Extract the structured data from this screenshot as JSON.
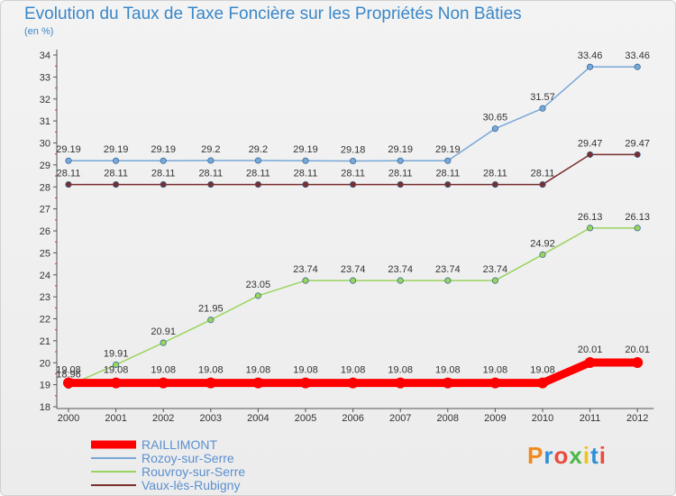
{
  "title": "Evolution du Taux de Taxe Foncière sur les Propriétés Non Bâties",
  "unit_label": "(en %)",
  "logo": "Proxiti",
  "chart_data": {
    "type": "line",
    "x": [
      "2000",
      "2001",
      "2002",
      "2003",
      "2004",
      "2005",
      "2006",
      "2007",
      "2008",
      "2009",
      "2010",
      "2011",
      "2012"
    ],
    "ylim": [
      18,
      34
    ],
    "yticks": [
      18,
      19,
      20,
      21,
      22,
      23,
      24,
      25,
      26,
      27,
      28,
      29,
      30,
      31,
      32,
      33,
      34
    ],
    "grid": false,
    "legend_position": "bottom-left",
    "series": [
      {
        "name": "RAILLIMONT",
        "color": "#ff0000",
        "values": [
          19.08,
          19.08,
          19.08,
          19.08,
          19.08,
          19.08,
          19.08,
          19.08,
          19.08,
          19.08,
          19.08,
          20.01,
          20.01
        ],
        "labels": [
          "19.08",
          "19.08",
          "19.08",
          "19.08",
          "19.08",
          "19.08",
          "19.08",
          "19.08",
          "19.08",
          "19.08",
          "19.08",
          "20.01",
          "20.01"
        ]
      },
      {
        "name": "Rozoy-sur-Serre",
        "color": "#78a8d8",
        "values": [
          29.19,
          29.19,
          29.19,
          29.2,
          29.2,
          29.19,
          29.18,
          29.19,
          29.19,
          30.65,
          31.57,
          33.46,
          33.46
        ],
        "labels": [
          "29.19",
          "29.19",
          "29.19",
          "29.2",
          "29.2",
          "29.19",
          "29.18",
          "29.19",
          "29.19",
          "30.65",
          "31.57",
          "33.46",
          "33.46"
        ]
      },
      {
        "name": "Rouvroy-sur-Serre",
        "color": "#99d45e",
        "values": [
          18.96,
          19.91,
          20.91,
          21.95,
          23.05,
          23.74,
          23.74,
          23.74,
          23.74,
          23.74,
          24.92,
          26.13,
          26.13
        ],
        "labels": [
          "18.96",
          "19.91",
          "20.91",
          "21.95",
          "23.05",
          "23.74",
          "23.74",
          "23.74",
          "23.74",
          "23.74",
          "24.92",
          "26.13",
          "26.13"
        ]
      },
      {
        "name": "Vaux-lès-Rubigny",
        "color": "#7a2e2e",
        "values": [
          28.11,
          28.11,
          28.11,
          28.11,
          28.11,
          28.11,
          28.11,
          28.11,
          28.11,
          28.11,
          28.11,
          29.47,
          29.47
        ],
        "labels": [
          "28.11",
          "28.11",
          "28.11",
          "28.11",
          "28.11",
          "28.11",
          "28.11",
          "28.11",
          "28.11",
          "28.11",
          "28.11",
          "29.47",
          "29.47"
        ]
      }
    ]
  }
}
